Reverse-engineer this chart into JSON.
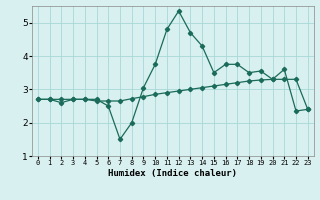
{
  "xlabel": "Humidex (Indice chaleur)",
  "x_values": [
    0,
    1,
    2,
    3,
    4,
    5,
    6,
    7,
    8,
    9,
    10,
    11,
    12,
    13,
    14,
    15,
    16,
    17,
    18,
    19,
    20,
    21,
    22,
    23
  ],
  "line1": [
    2.7,
    2.7,
    2.6,
    2.7,
    2.7,
    2.7,
    2.5,
    1.5,
    2.0,
    3.05,
    3.75,
    4.8,
    5.35,
    4.7,
    4.3,
    3.5,
    3.75,
    3.75,
    3.5,
    3.55,
    3.3,
    3.6,
    2.35,
    2.4
  ],
  "line2": [
    2.7,
    2.7,
    2.7,
    2.7,
    2.7,
    2.65,
    2.65,
    2.65,
    2.72,
    2.78,
    2.85,
    2.9,
    2.95,
    3.0,
    3.05,
    3.1,
    3.15,
    3.2,
    3.25,
    3.28,
    3.3,
    3.3,
    3.3,
    2.4
  ],
  "line_color": "#1a6b5a",
  "bg_color": "#d8f0ef",
  "grid_color": "#a8d8d8",
  "ylim": [
    1.0,
    5.5
  ],
  "xlim": [
    -0.5,
    23.5
  ],
  "yticks": [
    1,
    2,
    3,
    4,
    5
  ],
  "xtick_labels": [
    "0",
    "1",
    "2",
    "3",
    "4",
    "5",
    "6",
    "7",
    "8",
    "9",
    "10",
    "11",
    "12",
    "13",
    "14",
    "15",
    "16",
    "17",
    "18",
    "19",
    "20",
    "21",
    "22",
    "23"
  ]
}
